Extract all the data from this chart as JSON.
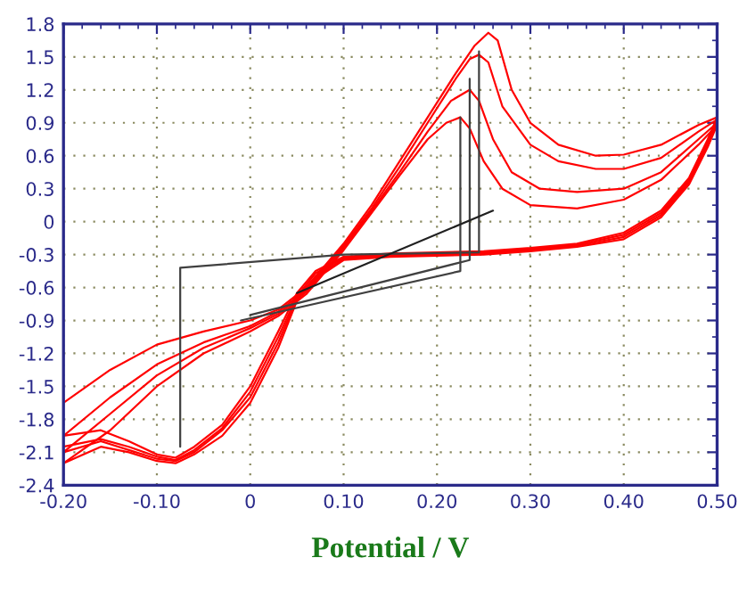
{
  "chart_data": {
    "type": "line",
    "xlabel": "Potential / V",
    "xlim": [
      -0.2,
      0.5
    ],
    "ylim": [
      -2.4,
      1.8
    ],
    "xticks": [
      {
        "value": -0.2,
        "label": "-0.20"
      },
      {
        "value": -0.1,
        "label": "-0.10"
      },
      0,
      {
        "value": 0.1,
        "label": "0.10"
      },
      {
        "value": 0.2,
        "label": "0.20"
      },
      {
        "value": 0.3,
        "label": "0.30"
      },
      {
        "value": 0.4,
        "label": "0.40"
      },
      {
        "value": 0.5,
        "label": "0.50"
      }
    ],
    "yticks": [
      -2.4,
      -2.1,
      -1.8,
      -1.5,
      -1.2,
      -0.9,
      -0.6,
      -0.3,
      0,
      0.3,
      0.6,
      0.9,
      1.2,
      1.5,
      1.8
    ],
    "grid": true,
    "marker": "none",
    "line_style": "solid",
    "series": [
      {
        "color": "#ff0000",
        "x": [
          -0.2,
          -0.15,
          -0.1,
          -0.05,
          0.0,
          0.03,
          0.06,
          0.08,
          0.1,
          0.13,
          0.16,
          0.19,
          0.22,
          0.24,
          0.255,
          0.265,
          0.28,
          0.3,
          0.33,
          0.37,
          0.4,
          0.44,
          0.48,
          0.5
        ],
        "values": [
          -1.65,
          -1.35,
          -1.12,
          -1.0,
          -0.9,
          -0.8,
          -0.6,
          -0.4,
          -0.2,
          0.15,
          0.55,
          0.95,
          1.35,
          1.6,
          1.72,
          1.65,
          1.2,
          0.9,
          0.7,
          0.6,
          0.61,
          0.7,
          0.88,
          0.95
        ]
      },
      {
        "color": "#ff0000",
        "x": [
          0.5,
          0.49,
          0.47,
          0.44,
          0.4,
          0.35,
          0.3,
          0.25,
          0.2,
          0.15,
          0.1,
          0.07,
          0.05,
          0.03,
          0.0,
          -0.03,
          -0.06,
          -0.08,
          -0.1,
          -0.13,
          -0.16,
          -0.2
        ],
        "values": [
          0.95,
          0.75,
          0.4,
          0.1,
          -0.1,
          -0.2,
          -0.24,
          -0.27,
          -0.28,
          -0.29,
          -0.32,
          -0.45,
          -0.65,
          -1.0,
          -1.5,
          -1.85,
          -2.05,
          -2.15,
          -2.12,
          -2.0,
          -1.9,
          -1.95
        ]
      },
      {
        "color": "#ff0000",
        "x": [
          -0.2,
          -0.15,
          -0.1,
          -0.05,
          0.0,
          0.03,
          0.06,
          0.08,
          0.1,
          0.13,
          0.16,
          0.19,
          0.22,
          0.235,
          0.245,
          0.255,
          0.27,
          0.3,
          0.33,
          0.37,
          0.4,
          0.44,
          0.48,
          0.5
        ],
        "values": [
          -1.95,
          -1.6,
          -1.3,
          -1.1,
          -0.95,
          -0.82,
          -0.62,
          -0.42,
          -0.22,
          0.12,
          0.5,
          0.9,
          1.3,
          1.48,
          1.52,
          1.45,
          1.05,
          0.7,
          0.55,
          0.48,
          0.48,
          0.58,
          0.82,
          0.93
        ]
      },
      {
        "color": "#ff0000",
        "x": [
          0.5,
          0.49,
          0.47,
          0.44,
          0.4,
          0.35,
          0.3,
          0.25,
          0.2,
          0.15,
          0.1,
          0.07,
          0.05,
          0.03,
          0.0,
          -0.03,
          -0.06,
          -0.08,
          -0.1,
          -0.13,
          -0.16,
          -0.2
        ],
        "values": [
          0.93,
          0.73,
          0.38,
          0.08,
          -0.12,
          -0.21,
          -0.25,
          -0.28,
          -0.29,
          -0.3,
          -0.33,
          -0.47,
          -0.68,
          -1.05,
          -1.55,
          -1.88,
          -2.08,
          -2.17,
          -2.14,
          -2.05,
          -1.98,
          -2.05
        ]
      },
      {
        "color": "#ff0000",
        "x": [
          -0.2,
          -0.15,
          -0.1,
          -0.05,
          0.0,
          0.03,
          0.06,
          0.08,
          0.1,
          0.13,
          0.16,
          0.19,
          0.215,
          0.235,
          0.245,
          0.26,
          0.28,
          0.31,
          0.35,
          0.4,
          0.44,
          0.48,
          0.5
        ],
        "values": [
          -2.1,
          -1.75,
          -1.4,
          -1.15,
          -0.97,
          -0.84,
          -0.64,
          -0.44,
          -0.24,
          0.1,
          0.45,
          0.82,
          1.1,
          1.2,
          1.1,
          0.75,
          0.45,
          0.3,
          0.27,
          0.3,
          0.45,
          0.75,
          0.9
        ]
      },
      {
        "color": "#ff0000",
        "x": [
          0.5,
          0.49,
          0.47,
          0.44,
          0.4,
          0.35,
          0.3,
          0.25,
          0.2,
          0.15,
          0.1,
          0.07,
          0.05,
          0.03,
          0.0,
          -0.03,
          -0.06,
          -0.08,
          -0.1,
          -0.13,
          -0.16,
          -0.2
        ],
        "values": [
          0.9,
          0.7,
          0.36,
          0.06,
          -0.14,
          -0.22,
          -0.26,
          -0.29,
          -0.3,
          -0.31,
          -0.34,
          -0.5,
          -0.7,
          -1.1,
          -1.6,
          -1.9,
          -2.1,
          -2.18,
          -2.16,
          -2.08,
          -2.0,
          -2.1
        ]
      },
      {
        "color": "#ff0000",
        "x": [
          -0.2,
          -0.15,
          -0.1,
          -0.05,
          0.0,
          0.03,
          0.06,
          0.08,
          0.1,
          0.13,
          0.16,
          0.19,
          0.21,
          0.225,
          0.235,
          0.25,
          0.27,
          0.3,
          0.35,
          0.4,
          0.44,
          0.48,
          0.5
        ],
        "values": [
          -2.2,
          -1.9,
          -1.5,
          -1.2,
          -1.0,
          -0.86,
          -0.66,
          -0.46,
          -0.26,
          0.08,
          0.42,
          0.75,
          0.9,
          0.95,
          0.85,
          0.55,
          0.3,
          0.15,
          0.12,
          0.2,
          0.38,
          0.7,
          0.88
        ]
      },
      {
        "color": "#ff0000",
        "x": [
          0.5,
          0.49,
          0.47,
          0.44,
          0.4,
          0.35,
          0.3,
          0.25,
          0.2,
          0.15,
          0.1,
          0.07,
          0.05,
          0.03,
          0.0,
          -0.03,
          -0.06,
          -0.08,
          -0.1,
          -0.13,
          -0.16,
          -0.2
        ],
        "values": [
          0.88,
          0.68,
          0.34,
          0.04,
          -0.16,
          -0.23,
          -0.27,
          -0.3,
          -0.31,
          -0.32,
          -0.35,
          -0.52,
          -0.72,
          -1.15,
          -1.65,
          -1.95,
          -2.12,
          -2.2,
          -2.18,
          -2.1,
          -2.05,
          -2.2
        ]
      },
      {
        "color": "#404040",
        "x": [
          -0.075,
          -0.075,
          0.1,
          0.245,
          0.245
        ],
        "values": [
          -2.05,
          -0.42,
          -0.3,
          -0.28,
          1.55
        ]
      },
      {
        "color": "#404040",
        "x": [
          -0.01,
          0.225,
          0.225
        ],
        "values": [
          -0.9,
          -0.45,
          0.95
        ]
      },
      {
        "color": "#404040",
        "x": [
          0.0,
          0.235,
          0.235
        ],
        "values": [
          -0.85,
          -0.35,
          1.3
        ]
      },
      {
        "color": "#202020",
        "x": [
          0.05,
          0.26
        ],
        "values": [
          -0.65,
          0.1
        ]
      }
    ]
  }
}
